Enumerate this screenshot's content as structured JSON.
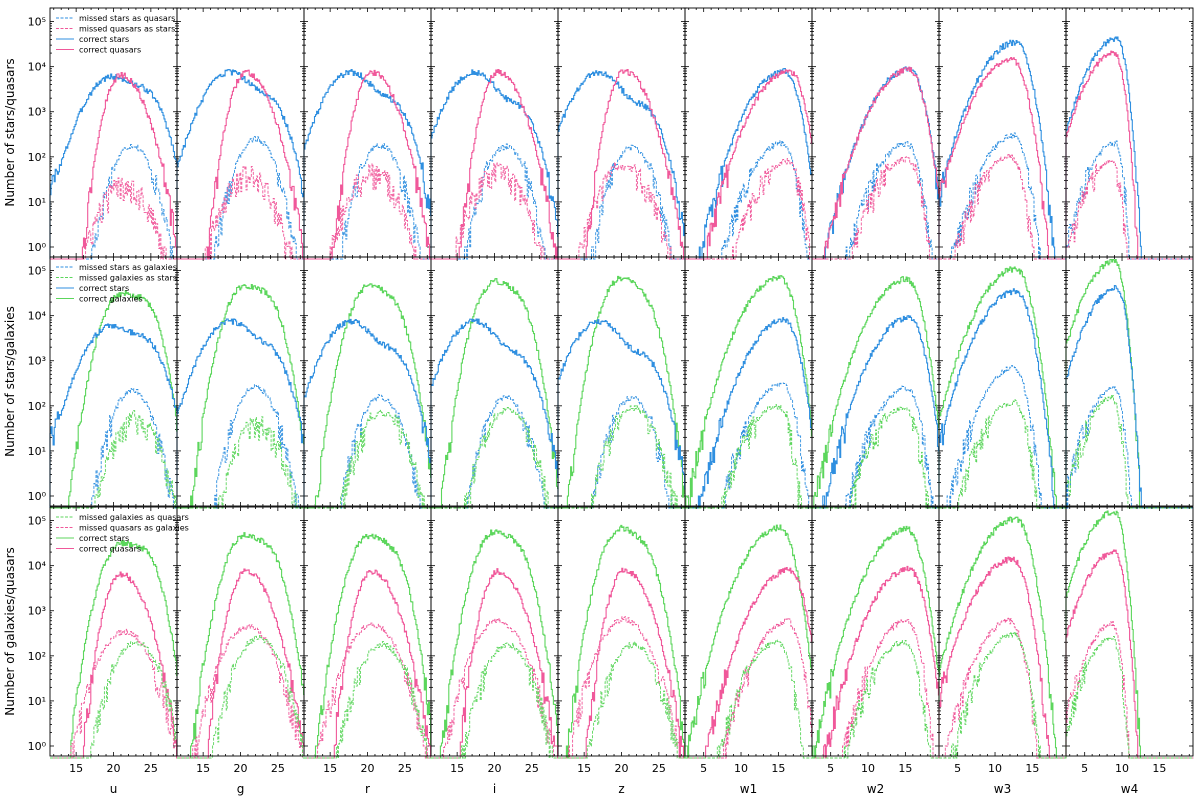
{
  "chart_data": {
    "type": "histogram-grid",
    "yscale": "log",
    "ylim": [
      0.6,
      200000
    ],
    "yticks": [
      {
        "value": 1,
        "label": "10⁰"
      },
      {
        "value": 10,
        "label": "10¹"
      },
      {
        "value": 100,
        "label": "10²"
      },
      {
        "value": 1000,
        "label": "10³"
      },
      {
        "value": 10000,
        "label": "10⁴"
      },
      {
        "value": 100000,
        "label": "10⁵"
      }
    ],
    "colors": {
      "stars": "#2f8fe0",
      "quasars": "#f0589a",
      "galaxies": "#5cd65c"
    },
    "columns": [
      {
        "band": "u",
        "xlim": [
          11.5,
          28.5
        ],
        "xticks": [
          15,
          20,
          25
        ]
      },
      {
        "band": "g",
        "xlim": [
          11.5,
          28.5
        ],
        "xticks": [
          15,
          20,
          25
        ]
      },
      {
        "band": "r",
        "xlim": [
          11.5,
          28.5
        ],
        "xticks": [
          15,
          20,
          25
        ]
      },
      {
        "band": "i",
        "xlim": [
          11.5,
          28.5
        ],
        "xticks": [
          15,
          20,
          25
        ]
      },
      {
        "band": "z",
        "xlim": [
          11.5,
          28.5
        ],
        "xticks": [
          15,
          20,
          25
        ]
      },
      {
        "band": "w1",
        "xlim": [
          2.5,
          19.5
        ],
        "xticks": [
          5,
          10,
          15
        ]
      },
      {
        "band": "w2",
        "xlim": [
          2.5,
          19.5
        ],
        "xticks": [
          5,
          10,
          15
        ]
      },
      {
        "band": "w3",
        "xlim": [
          2.5,
          19.5
        ],
        "xticks": [
          5,
          10,
          15
        ]
      },
      {
        "band": "w4",
        "xlim": [
          2.5,
          19.5
        ],
        "xticks": [
          5,
          10,
          15
        ]
      }
    ],
    "rows": [
      {
        "ylabel": "Number of stars/quasars",
        "legend": [
          {
            "label": "missed stars as quasars",
            "color": "#2f8fe0",
            "dashed": true
          },
          {
            "label": "missed quasars as stars",
            "color": "#f0589a",
            "dashed": true
          },
          {
            "label": "correct stars",
            "color": "#2f8fe0",
            "dashed": false
          },
          {
            "label": "correct quasars",
            "color": "#f0589a",
            "dashed": false
          }
        ],
        "series": [
          {
            "cls": "stars",
            "kind": "correct",
            "color": "#2f8fe0",
            "dashed": false,
            "peaks": [
              [
                6000,
                2500
              ],
              [
                7500,
                1800
              ],
              [
                7500,
                1500
              ],
              [
                7500,
                1200
              ],
              [
                7500,
                1200
              ],
              [
                8000,
                0
              ],
              [
                9000,
                0
              ],
              [
                35000,
                0
              ],
              [
                42000,
                0
              ]
            ]
          },
          {
            "cls": "quasars",
            "kind": "correct",
            "color": "#f0589a",
            "dashed": false,
            "peaks": [
              [
                6500,
                0
              ],
              [
                7500,
                0
              ],
              [
                7500,
                0
              ],
              [
                7500,
                0
              ],
              [
                8000,
                0
              ],
              [
                8000,
                0
              ],
              [
                8500,
                0
              ],
              [
                14000,
                0
              ],
              [
                20000,
                0
              ]
            ]
          },
          {
            "cls": "stars",
            "kind": "missed",
            "color": "#2f8fe0",
            "dashed": true,
            "peaks": [
              [
                180,
                0
              ],
              [
                250,
                0
              ],
              [
                180,
                0
              ],
              [
                170,
                0
              ],
              [
                160,
                0
              ],
              [
                200,
                0
              ],
              [
                200,
                0
              ],
              [
                300,
                0
              ],
              [
                200,
                0
              ]
            ]
          },
          {
            "cls": "quasars",
            "kind": "missed",
            "color": "#f0589a",
            "dashed": true,
            "peaks": [
              [
                25,
                0
              ],
              [
                40,
                0
              ],
              [
                45,
                0
              ],
              [
                50,
                0
              ],
              [
                60,
                0
              ],
              [
                80,
                0
              ],
              [
                90,
                0
              ],
              [
                100,
                0
              ],
              [
                80,
                0
              ]
            ]
          }
        ]
      },
      {
        "ylabel": "Number of stars/galaxies",
        "legend": [
          {
            "label": "missed stars as galaxies",
            "color": "#2f8fe0",
            "dashed": true
          },
          {
            "label": "missed galaxies as stars",
            "color": "#5cd65c",
            "dashed": true
          },
          {
            "label": "correct stars",
            "color": "#2f8fe0",
            "dashed": false
          },
          {
            "label": "correct galaxies",
            "color": "#5cd65c",
            "dashed": false
          }
        ],
        "series": [
          {
            "cls": "galaxies",
            "kind": "correct",
            "color": "#5cd65c",
            "dashed": false,
            "peaks": [
              [
                30000,
                20000
              ],
              [
                45000,
                25000
              ],
              [
                45000,
                20000
              ],
              [
                55000,
                25000
              ],
              [
                65000,
                25000
              ],
              [
                70000,
                0
              ],
              [
                65000,
                0
              ],
              [
                110000,
                0
              ],
              [
                160000,
                0
              ]
            ]
          },
          {
            "cls": "stars",
            "kind": "correct",
            "color": "#2f8fe0",
            "dashed": false,
            "peaks": [
              [
                6000,
                2500
              ],
              [
                7500,
                1800
              ],
              [
                7500,
                1500
              ],
              [
                7500,
                1200
              ],
              [
                7500,
                1200
              ],
              [
                8000,
                0
              ],
              [
                9000,
                0
              ],
              [
                35000,
                0
              ],
              [
                42000,
                0
              ]
            ]
          },
          {
            "cls": "stars",
            "kind": "missed",
            "color": "#2f8fe0",
            "dashed": true,
            "peaks": [
              [
                220,
                0
              ],
              [
                270,
                0
              ],
              [
                160,
                0
              ],
              [
                150,
                0
              ],
              [
                150,
                0
              ],
              [
                300,
                0
              ],
              [
                250,
                0
              ],
              [
                700,
                0
              ],
              [
                250,
                0
              ]
            ]
          },
          {
            "cls": "galaxies",
            "kind": "missed",
            "color": "#5cd65c",
            "dashed": true,
            "peaks": [
              [
                50,
                0
              ],
              [
                40,
                0
              ],
              [
                70,
                0
              ],
              [
                80,
                0
              ],
              [
                90,
                0
              ],
              [
                100,
                0
              ],
              [
                90,
                0
              ],
              [
                120,
                0
              ],
              [
                150,
                0
              ]
            ]
          }
        ]
      },
      {
        "ylabel": "Number of galaxies/quasars",
        "legend": [
          {
            "label": "missed galaxies as quasars",
            "color": "#5cd65c",
            "dashed": true
          },
          {
            "label": "missed quasars as galaxies",
            "color": "#f0589a",
            "dashed": true
          },
          {
            "label": "correct stars",
            "color": "#5cd65c",
            "dashed": false
          },
          {
            "label": "correct quasars",
            "color": "#f0589a",
            "dashed": false
          }
        ],
        "series": [
          {
            "cls": "galaxies",
            "kind": "correct",
            "color": "#5cd65c",
            "dashed": false,
            "peaks": [
              [
                30000,
                20000
              ],
              [
                45000,
                25000
              ],
              [
                45000,
                20000
              ],
              [
                55000,
                25000
              ],
              [
                65000,
                25000
              ],
              [
                70000,
                0
              ],
              [
                65000,
                0
              ],
              [
                110000,
                0
              ],
              [
                160000,
                0
              ]
            ]
          },
          {
            "cls": "quasars",
            "kind": "correct",
            "color": "#f0589a",
            "dashed": false,
            "peaks": [
              [
                6500,
                0
              ],
              [
                7500,
                0
              ],
              [
                7500,
                0
              ],
              [
                7500,
                0
              ],
              [
                8000,
                0
              ],
              [
                8000,
                0
              ],
              [
                8500,
                0
              ],
              [
                14000,
                0
              ],
              [
                20000,
                0
              ]
            ]
          },
          {
            "cls": "quasars",
            "kind": "missed",
            "color": "#f0589a",
            "dashed": true,
            "peaks": [
              [
                350,
                0
              ],
              [
                450,
                0
              ],
              [
                500,
                0
              ],
              [
                600,
                0
              ],
              [
                650,
                0
              ],
              [
                600,
                0
              ],
              [
                600,
                0
              ],
              [
                600,
                0
              ],
              [
                500,
                0
              ]
            ]
          },
          {
            "cls": "galaxies",
            "kind": "missed",
            "color": "#5cd65c",
            "dashed": true,
            "peaks": [
              [
                200,
                0
              ],
              [
                250,
                0
              ],
              [
                180,
                0
              ],
              [
                180,
                0
              ],
              [
                180,
                0
              ],
              [
                200,
                0
              ],
              [
                200,
                0
              ],
              [
                300,
                0
              ],
              [
                250,
                0
              ]
            ]
          }
        ]
      }
    ]
  }
}
